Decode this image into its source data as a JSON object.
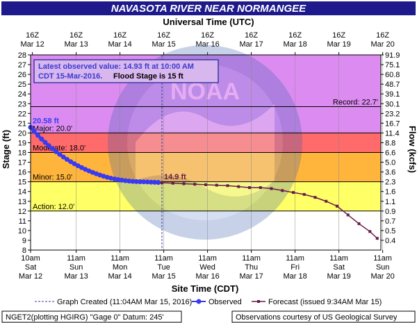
{
  "header": {
    "title": "NAVASOTA RIVER NEAR NORMANGEE"
  },
  "top_axis": {
    "title": "Universal Time (UTC)",
    "ticks": [
      {
        "l1": "16Z",
        "l2": "Mar 12"
      },
      {
        "l1": "16Z",
        "l2": "Mar 13"
      },
      {
        "l1": "16Z",
        "l2": "Mar 14"
      },
      {
        "l1": "16Z",
        "l2": "Mar 15"
      },
      {
        "l1": "16Z",
        "l2": "Mar 16"
      },
      {
        "l1": "16Z",
        "l2": "Mar 17"
      },
      {
        "l1": "16Z",
        "l2": "Mar 18"
      },
      {
        "l1": "16Z",
        "l2": "Mar 19"
      },
      {
        "l1": "16Z",
        "l2": "Mar 20"
      }
    ]
  },
  "annotation": {
    "line1": "Latest observed value: 14.93 ft at 10:00 AM",
    "line2a": "CDT 15-Mar-2016.",
    "line2b": "Flood Stage is 15 ft"
  },
  "colors": {
    "title_bg": "#1e1a8c",
    "record": "#dc8cf0",
    "major": "#e46bd2",
    "moderate": "#ff6a6a",
    "minor": "#ffb43c",
    "action": "#ffff66",
    "normal": "#ffffff",
    "observed": "#3a3af0",
    "forecast": "#6a1a4a",
    "graph_created": "#3a3aa0"
  },
  "chart_data": {
    "type": "line",
    "title": "NAVASOTA RIVER NEAR NORMANGEE",
    "xlabel": "Site Time (CDT)",
    "ylabel": "Stage (ft)",
    "y2label": "Flow (kcfs)",
    "top_xlabel": "Universal Time (UTC)",
    "ylim": [
      8,
      28
    ],
    "xlim_hours_from_mar12_10am": [
      0,
      192
    ],
    "x_ticks": [
      {
        "l1": "10am",
        "l2": "Sat",
        "l3": "Mar 12"
      },
      {
        "l1": "11am",
        "l2": "Sun",
        "l3": "Mar 13"
      },
      {
        "l1": "11am",
        "l2": "Mon",
        "l3": "Mar 14"
      },
      {
        "l1": "11am",
        "l2": "Tue",
        "l3": "Mar 15"
      },
      {
        "l1": "11am",
        "l2": "Wed",
        "l3": "Mar 16"
      },
      {
        "l1": "11am",
        "l2": "Thu",
        "l3": "Mar 17"
      },
      {
        "l1": "11am",
        "l2": "Fri",
        "l3": "Mar 18"
      },
      {
        "l1": "11am",
        "l2": "Sat",
        "l3": "Mar 19"
      },
      {
        "l1": "11am",
        "l2": "Sun",
        "l3": "Mar 20"
      }
    ],
    "y_ticks": [
      8,
      9,
      10,
      11,
      12,
      13,
      14,
      15,
      16,
      17,
      18,
      19,
      20,
      21,
      22,
      23,
      24,
      25,
      26,
      27,
      28
    ],
    "flow_ticks": [
      {
        "stage": 9,
        "label": "0.4"
      },
      {
        "stage": 10,
        "label": "0.5"
      },
      {
        "stage": 11,
        "label": "0.7"
      },
      {
        "stage": 12,
        "label": "0.9"
      },
      {
        "stage": 13,
        "label": "1.1"
      },
      {
        "stage": 14,
        "label": "1.6"
      },
      {
        "stage": 15,
        "label": "2.3"
      },
      {
        "stage": 16,
        "label": "3.6"
      },
      {
        "stage": 17,
        "label": "5.0"
      },
      {
        "stage": 18,
        "label": "6.6"
      },
      {
        "stage": 19,
        "label": "8.8"
      },
      {
        "stage": 20,
        "label": "11.4"
      },
      {
        "stage": 21,
        "label": "16.7"
      },
      {
        "stage": 22,
        "label": "23.2"
      },
      {
        "stage": 23,
        "label": "30.1"
      },
      {
        "stage": 24,
        "label": "39.1"
      },
      {
        "stage": 25,
        "label": "48.7"
      },
      {
        "stage": 26,
        "label": "60.8"
      },
      {
        "stage": 27,
        "label": "75.1"
      },
      {
        "stage": 28,
        "label": "91.9"
      }
    ],
    "flood_categories": [
      {
        "name": "Major",
        "label": "Major: 20.0'",
        "stage": 20.0
      },
      {
        "name": "Moderate",
        "label": "Moderate: 18.0'",
        "stage": 18.0
      },
      {
        "name": "Minor",
        "label": "Minor: 15.0'",
        "stage": 15.0
      },
      {
        "name": "Action",
        "label": "Action: 12.0'",
        "stage": 12.0
      },
      {
        "name": "Record",
        "label": "Record: 22.7'",
        "stage": 22.7
      }
    ],
    "graph_created_hour": 72,
    "observed_label": "20.58 ft",
    "observed": [
      {
        "x": 0,
        "y": 20.58
      },
      {
        "x": 2,
        "y": 20.15
      },
      {
        "x": 4,
        "y": 19.75
      },
      {
        "x": 6,
        "y": 19.38
      },
      {
        "x": 8,
        "y": 19.03
      },
      {
        "x": 10,
        "y": 18.7
      },
      {
        "x": 12,
        "y": 18.38
      },
      {
        "x": 14,
        "y": 18.08
      },
      {
        "x": 16,
        "y": 17.8
      },
      {
        "x": 18,
        "y": 17.54
      },
      {
        "x": 20,
        "y": 17.29
      },
      {
        "x": 22,
        "y": 17.06
      },
      {
        "x": 24,
        "y": 16.84
      },
      {
        "x": 26,
        "y": 16.64
      },
      {
        "x": 28,
        "y": 16.45
      },
      {
        "x": 30,
        "y": 16.27
      },
      {
        "x": 32,
        "y": 16.11
      },
      {
        "x": 34,
        "y": 15.96
      },
      {
        "x": 36,
        "y": 15.82
      },
      {
        "x": 38,
        "y": 15.69
      },
      {
        "x": 40,
        "y": 15.57
      },
      {
        "x": 42,
        "y": 15.46
      },
      {
        "x": 44,
        "y": 15.37
      },
      {
        "x": 46,
        "y": 15.29
      },
      {
        "x": 48,
        "y": 15.22
      },
      {
        "x": 50,
        "y": 15.16
      },
      {
        "x": 52,
        "y": 15.11
      },
      {
        "x": 54,
        "y": 15.07
      },
      {
        "x": 56,
        "y": 15.04
      },
      {
        "x": 58,
        "y": 15.02
      },
      {
        "x": 60,
        "y": 15.0
      },
      {
        "x": 62,
        "y": 14.99
      },
      {
        "x": 64,
        "y": 14.98
      },
      {
        "x": 66,
        "y": 14.96
      },
      {
        "x": 68,
        "y": 14.95
      },
      {
        "x": 70,
        "y": 14.93
      }
    ],
    "forecast_label": "14.9 ft",
    "forecast": [
      {
        "x": 72,
        "y": 14.9
      },
      {
        "x": 78,
        "y": 14.85
      },
      {
        "x": 84,
        "y": 14.8
      },
      {
        "x": 90,
        "y": 14.75
      },
      {
        "x": 96,
        "y": 14.7
      },
      {
        "x": 102,
        "y": 14.65
      },
      {
        "x": 108,
        "y": 14.6
      },
      {
        "x": 114,
        "y": 14.5
      },
      {
        "x": 120,
        "y": 14.4
      },
      {
        "x": 126,
        "y": 14.4
      },
      {
        "x": 132,
        "y": 14.3
      },
      {
        "x": 138,
        "y": 14.1
      },
      {
        "x": 144,
        "y": 13.9
      },
      {
        "x": 150,
        "y": 13.7
      },
      {
        "x": 156,
        "y": 13.4
      },
      {
        "x": 162,
        "y": 13.0
      },
      {
        "x": 168,
        "y": 12.5
      },
      {
        "x": 174,
        "y": 11.6
      },
      {
        "x": 180,
        "y": 10.7
      },
      {
        "x": 186,
        "y": 9.9
      },
      {
        "x": 190,
        "y": 9.2
      }
    ]
  },
  "legend": {
    "graph_created": "Graph Created (11:04AM Mar 15, 2016)",
    "observed": "Observed",
    "forecast": "Forecast (issued 9:34AM Mar 15)"
  },
  "footer": {
    "left": "NGET2(plotting HGIRG) \"Gage 0\" Datum: 245'",
    "right": "Observations courtesy of US Geological Survey"
  }
}
